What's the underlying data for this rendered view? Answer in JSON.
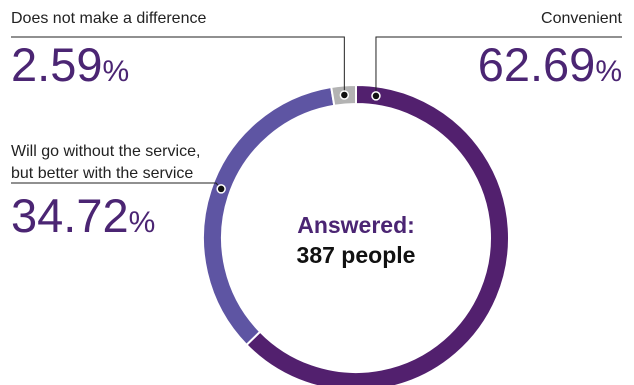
{
  "chart_data": {
    "type": "pie",
    "style": "donut",
    "center": {
      "line1": "Answered:",
      "line2": "387 people"
    },
    "slices": [
      {
        "label": "Convenient",
        "value": 62.69,
        "display": "62.69",
        "unit": "%",
        "color": "#52206e"
      },
      {
        "label": "Will go without the service, but better with the service",
        "label_lines": [
          "Will go without the service,",
          "but better with the service"
        ],
        "value": 34.72,
        "display": "34.72",
        "unit": "%",
        "color": "#5e55a3"
      },
      {
        "label": "Does not make a difference",
        "value": 2.59,
        "display": "2.59",
        "unit": "%",
        "color": "#b3b3b3"
      }
    ],
    "value_color": "#4b2573"
  }
}
